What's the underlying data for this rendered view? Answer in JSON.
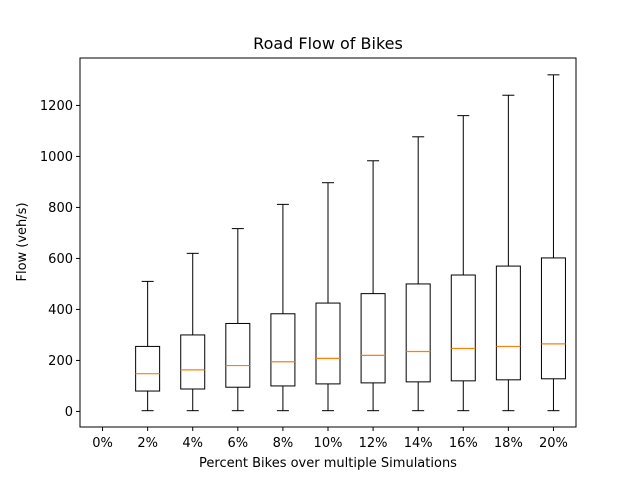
{
  "chart_data": {
    "type": "box",
    "title": "Road Flow of Bikes",
    "xlabel": "Percent Bikes over multiple Simulations",
    "ylabel": "Flow (veh/s)",
    "categories": [
      "0%",
      "2%",
      "4%",
      "6%",
      "8%",
      "10%",
      "12%",
      "14%",
      "16%",
      "18%",
      "20%"
    ],
    "boxes": [
      null,
      {
        "whislo": 3,
        "q1": 80,
        "med": 148,
        "q3": 255,
        "whishi": 510
      },
      {
        "whislo": 3,
        "q1": 88,
        "med": 163,
        "q3": 300,
        "whishi": 620
      },
      {
        "whislo": 3,
        "q1": 95,
        "med": 180,
        "q3": 345,
        "whishi": 717
      },
      {
        "whislo": 3,
        "q1": 100,
        "med": 195,
        "q3": 383,
        "whishi": 812
      },
      {
        "whislo": 3,
        "q1": 108,
        "med": 208,
        "q3": 425,
        "whishi": 897
      },
      {
        "whislo": 3,
        "q1": 112,
        "med": 220,
        "q3": 462,
        "whishi": 983
      },
      {
        "whislo": 3,
        "q1": 116,
        "med": 235,
        "q3": 500,
        "whishi": 1077
      },
      {
        "whislo": 3,
        "q1": 120,
        "med": 247,
        "q3": 535,
        "whishi": 1160
      },
      {
        "whislo": 3,
        "q1": 124,
        "med": 255,
        "q3": 570,
        "whishi": 1240
      },
      {
        "whislo": 3,
        "q1": 128,
        "med": 265,
        "q3": 602,
        "whishi": 1320
      }
    ],
    "yticks": [
      0,
      200,
      400,
      600,
      800,
      1000,
      1200
    ],
    "ylim": [
      -61,
      1386
    ],
    "colors": {
      "box": "#000000",
      "median": "#ff7f0e"
    }
  }
}
